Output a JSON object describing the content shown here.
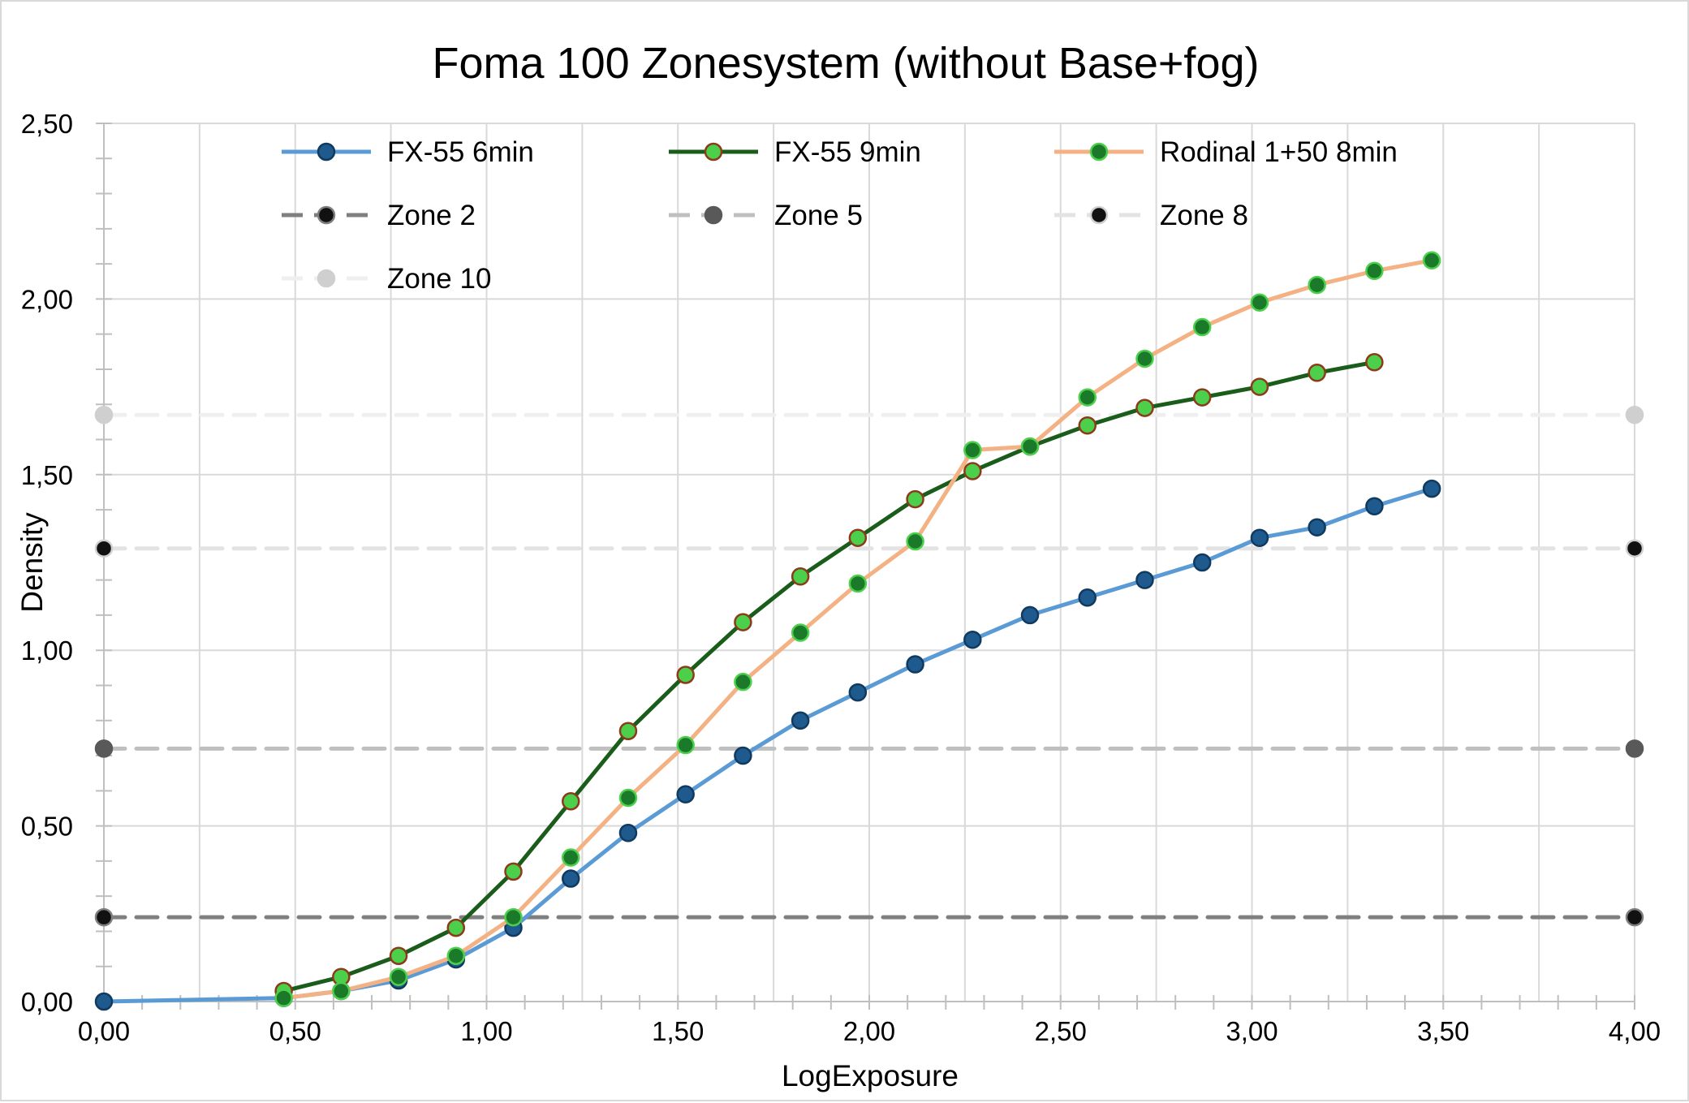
{
  "chart_data": {
    "type": "line",
    "title": "Foma 100 Zonesystem (without Base+fog)",
    "xlabel": "LogExposure",
    "ylabel": "Density",
    "xlim": [
      0,
      4
    ],
    "ylim": [
      0,
      2.5
    ],
    "x_ticks": [
      "0,00",
      "0,50",
      "1,00",
      "1,50",
      "2,00",
      "2,50",
      "3,00",
      "3,50",
      "4,00"
    ],
    "y_ticks": [
      "0,00",
      "0,50",
      "1,00",
      "1,50",
      "2,00",
      "2,50"
    ],
    "grid": true,
    "legend_position": "top",
    "series": [
      {
        "name": "FX-55 6min",
        "color": "#5b9bd5",
        "marker_fill": "#1f5a8e",
        "marker_edge": "#103a5e",
        "style": "solid",
        "x": [
          0.0,
          0.47,
          0.62,
          0.77,
          0.92,
          1.07,
          1.22,
          1.37,
          1.52,
          1.67,
          1.82,
          1.97,
          2.12,
          2.27,
          2.42,
          2.57,
          2.72,
          2.87,
          3.02,
          3.17,
          3.32,
          3.47
        ],
        "y": [
          0.0,
          0.01,
          0.03,
          0.06,
          0.12,
          0.21,
          0.35,
          0.48,
          0.59,
          0.7,
          0.8,
          0.88,
          0.96,
          1.03,
          1.1,
          1.15,
          1.2,
          1.25,
          1.32,
          1.35,
          1.41,
          1.46
        ]
      },
      {
        "name": "FX-55 9min",
        "color": "#1a5c1a",
        "marker_fill": "#4cd04c",
        "marker_edge": "#8b3a1a",
        "style": "solid",
        "x": [
          0.47,
          0.62,
          0.77,
          0.92,
          1.07,
          1.22,
          1.37,
          1.52,
          1.67,
          1.82,
          1.97,
          2.12,
          2.27,
          2.42,
          2.57,
          2.72,
          2.87,
          3.02,
          3.17,
          3.32
        ],
        "y": [
          0.03,
          0.07,
          0.13,
          0.21,
          0.37,
          0.57,
          0.77,
          0.93,
          1.08,
          1.21,
          1.32,
          1.43,
          1.51,
          1.58,
          1.64,
          1.69,
          1.72,
          1.75,
          1.79,
          1.82
        ]
      },
      {
        "name": "Rodinal 1+50 8min",
        "color": "#f4b183",
        "marker_fill": "#1a7a2a",
        "marker_edge": "#4cd04c",
        "style": "solid",
        "x": [
          0.47,
          0.62,
          0.77,
          0.92,
          1.07,
          1.22,
          1.37,
          1.52,
          1.67,
          1.82,
          1.97,
          2.12,
          2.27,
          2.42,
          2.57,
          2.72,
          2.87,
          3.02,
          3.17,
          3.32,
          3.47
        ],
        "y": [
          0.01,
          0.03,
          0.07,
          0.13,
          0.24,
          0.41,
          0.58,
          0.73,
          0.91,
          1.05,
          1.19,
          1.31,
          1.57,
          1.58,
          1.72,
          1.83,
          1.92,
          1.99,
          2.04,
          2.08,
          2.11
        ]
      },
      {
        "name": "Zone 2",
        "color": "#7f7f7f",
        "marker_fill": "#111111",
        "marker_edge": "#7f7f7f",
        "style": "dashed",
        "x": [
          0,
          4
        ],
        "y": [
          0.24,
          0.24
        ]
      },
      {
        "name": "Zone 5",
        "color": "#bfbfbf",
        "marker_fill": "#595959",
        "marker_edge": "#595959",
        "style": "dashed",
        "x": [
          0,
          4
        ],
        "y": [
          0.72,
          0.72
        ]
      },
      {
        "name": "Zone 8",
        "color": "#e3e3e3",
        "marker_fill": "#111111",
        "marker_edge": "#d0d0d0",
        "style": "dashed",
        "x": [
          0,
          4
        ],
        "y": [
          1.29,
          1.29
        ]
      },
      {
        "name": "Zone 10",
        "color": "#efefef",
        "marker_fill": "#cfcfcf",
        "marker_edge": "#cfcfcf",
        "style": "dashed",
        "x": [
          0,
          4
        ],
        "y": [
          1.67,
          1.67
        ]
      }
    ]
  }
}
